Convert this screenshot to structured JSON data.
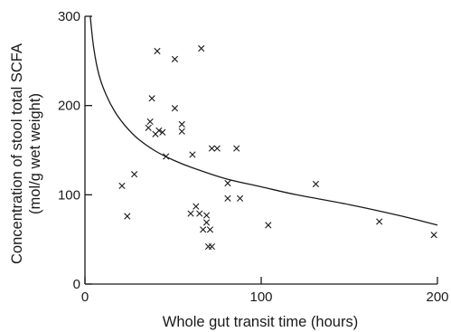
{
  "chart_data": {
    "type": "scatter",
    "title": "",
    "xlabel": "Whole gut transit time (hours)",
    "ylabel_line1": "Concentration of stool total SCFA",
    "ylabel_line2": "(mol/g wet weight)",
    "xlim": [
      0,
      200
    ],
    "ylim": [
      0,
      300
    ],
    "x_ticks": [
      0,
      100,
      200
    ],
    "y_ticks": [
      0,
      100,
      200,
      300
    ],
    "grid": false,
    "marker": "x",
    "color": "#1a1a1a",
    "points": [
      {
        "x": 21,
        "y": 110
      },
      {
        "x": 24,
        "y": 76
      },
      {
        "x": 28,
        "y": 123
      },
      {
        "x": 36,
        "y": 175
      },
      {
        "x": 37,
        "y": 182
      },
      {
        "x": 38,
        "y": 208
      },
      {
        "x": 40,
        "y": 168
      },
      {
        "x": 41,
        "y": 261
      },
      {
        "x": 42,
        "y": 172
      },
      {
        "x": 44,
        "y": 170
      },
      {
        "x": 46,
        "y": 143
      },
      {
        "x": 51,
        "y": 252
      },
      {
        "x": 51,
        "y": 197
      },
      {
        "x": 55,
        "y": 179
      },
      {
        "x": 55,
        "y": 171
      },
      {
        "x": 60,
        "y": 79
      },
      {
        "x": 61,
        "y": 145
      },
      {
        "x": 63,
        "y": 87
      },
      {
        "x": 65,
        "y": 79
      },
      {
        "x": 66,
        "y": 264
      },
      {
        "x": 67,
        "y": 61
      },
      {
        "x": 69,
        "y": 69
      },
      {
        "x": 69,
        "y": 77
      },
      {
        "x": 70,
        "y": 42
      },
      {
        "x": 71,
        "y": 61
      },
      {
        "x": 72,
        "y": 42
      },
      {
        "x": 72,
        "y": 152
      },
      {
        "x": 75,
        "y": 152
      },
      {
        "x": 81,
        "y": 113
      },
      {
        "x": 81,
        "y": 96
      },
      {
        "x": 86,
        "y": 152
      },
      {
        "x": 88,
        "y": 96
      },
      {
        "x": 104,
        "y": 66
      },
      {
        "x": 131,
        "y": 112
      },
      {
        "x": 167,
        "y": 70
      },
      {
        "x": 198,
        "y": 55
      }
    ],
    "fit_curve": {
      "x": [
        3,
        5,
        8,
        12,
        17,
        23,
        30,
        40,
        50,
        60,
        80,
        100,
        120,
        150,
        180,
        200
      ],
      "y": [
        300,
        264,
        234,
        212,
        193,
        177,
        163,
        149,
        139,
        131,
        118,
        109,
        100,
        89,
        76,
        66
      ]
    }
  }
}
